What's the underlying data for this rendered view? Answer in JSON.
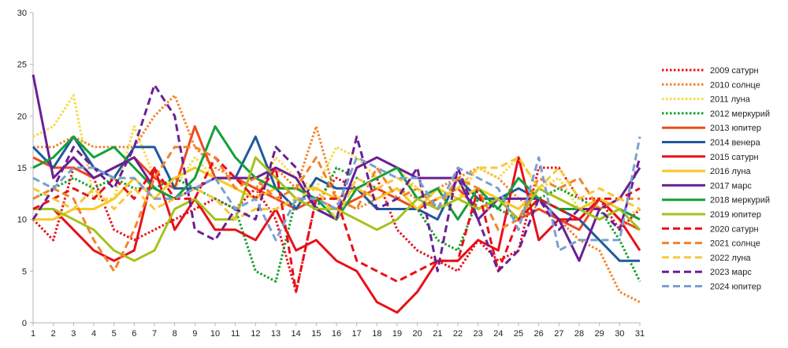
{
  "chart_data": {
    "type": "line",
    "title": "",
    "xlabel": "",
    "ylabel": "",
    "ylim": [
      0,
      30
    ],
    "yticks": [
      0,
      5,
      10,
      15,
      20,
      25,
      30
    ],
    "x": [
      1,
      2,
      3,
      4,
      5,
      6,
      7,
      8,
      9,
      10,
      11,
      12,
      13,
      14,
      15,
      16,
      17,
      18,
      19,
      20,
      21,
      22,
      23,
      24,
      25,
      26,
      27,
      28,
      29,
      30,
      31
    ],
    "grid": false,
    "legend": "right",
    "series": [
      {
        "name": "2009 сатурн",
        "color": "#e8101a",
        "dash": "dot",
        "values": [
          10,
          8,
          15,
          14,
          9,
          8,
          9,
          10,
          11,
          12,
          11,
          13,
          10,
          3,
          12,
          14,
          13,
          14,
          9,
          7,
          6,
          5,
          8,
          6,
          7,
          15,
          15,
          12,
          12,
          9,
          11
        ]
      },
      {
        "name": "2010 солнце",
        "color": "#f2832b",
        "dash": "dot",
        "values": [
          17,
          17,
          18,
          17,
          17,
          17,
          20,
          22,
          17,
          15,
          14,
          13,
          15,
          13,
          19,
          12,
          11,
          12,
          13,
          12,
          13,
          14,
          15,
          14,
          12,
          11,
          10,
          8,
          7,
          3,
          2
        ]
      },
      {
        "name": "2011 луна",
        "color": "#f8d83c",
        "dash": "dot",
        "values": [
          18,
          19,
          22,
          12,
          12,
          19,
          14,
          13,
          16,
          14,
          13,
          12,
          16,
          14,
          13,
          17,
          16,
          14,
          15,
          13,
          11,
          12,
          15,
          14,
          16,
          13,
          14,
          11,
          12,
          10,
          11
        ]
      },
      {
        "name": "2012 меркурий",
        "color": "#13a02a",
        "dash": "dot",
        "values": [
          12,
          13,
          14,
          13,
          14,
          13,
          13,
          14,
          13,
          12,
          11,
          5,
          4,
          12,
          11,
          15,
          14,
          13,
          12,
          11,
          8,
          7,
          12,
          11,
          10,
          12,
          13,
          12,
          11,
          8,
          4
        ]
      },
      {
        "name": "2013 юпитер",
        "color": "#ef4a20",
        "dash": "solid",
        "values": [
          16,
          15,
          15,
          14,
          15,
          16,
          14,
          13,
          19,
          14,
          14,
          13,
          12,
          11,
          12,
          11,
          12,
          13,
          12,
          11,
          12,
          13,
          11,
          12,
          10,
          11,
          10,
          9,
          12,
          10,
          9
        ]
      },
      {
        "name": "2014 венера",
        "color": "#1f5a9c",
        "dash": "solid",
        "values": [
          17,
          15,
          18,
          15,
          14,
          17,
          17,
          13,
          13,
          14,
          14,
          18,
          13,
          11,
          14,
          13,
          13,
          11,
          11,
          11,
          10,
          14,
          12,
          12,
          13,
          12,
          11,
          10,
          8,
          6,
          6
        ]
      },
      {
        "name": "2015 сатурн",
        "color": "#e8101a",
        "dash": "solid",
        "values": [
          11,
          11,
          9,
          7,
          6,
          7,
          15,
          9,
          12,
          9,
          9,
          8,
          11,
          7,
          8,
          6,
          5,
          2,
          1,
          3,
          6,
          6,
          8,
          7,
          16,
          8,
          10,
          10,
          12,
          10,
          7
        ]
      },
      {
        "name": "2016 луна",
        "color": "#f9c823",
        "dash": "solid",
        "values": [
          10,
          10,
          11,
          11,
          12,
          14,
          12,
          14,
          15,
          14,
          13,
          12,
          13,
          13,
          13,
          12,
          13,
          12,
          13,
          11,
          13,
          12,
          13,
          12,
          11,
          13,
          12,
          11,
          12,
          11,
          10
        ]
      },
      {
        "name": "2017 марс",
        "color": "#6b1f94",
        "dash": "solid",
        "values": [
          24,
          14,
          16,
          14,
          15,
          16,
          13,
          12,
          13,
          14,
          14,
          14,
          15,
          14,
          11,
          10,
          15,
          16,
          15,
          14,
          14,
          14,
          10,
          12,
          12,
          12,
          10,
          6,
          11,
          12,
          15
        ]
      },
      {
        "name": "2018 меркурий",
        "color": "#14a03a",
        "dash": "solid",
        "values": [
          15,
          16,
          18,
          16,
          17,
          15,
          13,
          12,
          14,
          19,
          16,
          14,
          13,
          13,
          12,
          10,
          13,
          14,
          15,
          12,
          13,
          10,
          13,
          11,
          14,
          12,
          11,
          11,
          10,
          11,
          10
        ]
      },
      {
        "name": "2019 юпитер",
        "color": "#a5c31b",
        "dash": "solid",
        "values": [
          11,
          11,
          10,
          9,
          7,
          6,
          7,
          11,
          12,
          10,
          10,
          16,
          14,
          12,
          11,
          11,
          10,
          9,
          10,
          12,
          11,
          12,
          11,
          12,
          10,
          13,
          12,
          11,
          10,
          11,
          9
        ]
      },
      {
        "name": "2020 сатурн",
        "color": "#e8101a",
        "dash": "dash",
        "values": [
          11,
          12,
          13,
          12,
          14,
          12,
          15,
          12,
          12,
          16,
          14,
          12,
          15,
          3,
          12,
          12,
          6,
          5,
          4,
          5,
          6,
          6,
          13,
          5,
          10,
          12,
          11,
          10,
          12,
          12,
          13
        ]
      },
      {
        "name": "2021 солнце",
        "color": "#f2832b",
        "dash": "dash",
        "values": [
          12,
          13,
          12,
          8,
          5,
          9,
          14,
          17,
          17,
          16,
          13,
          14,
          12,
          13,
          16,
          12,
          11,
          15,
          12,
          13,
          11,
          14,
          13,
          9,
          10,
          14,
          13,
          14,
          11,
          12,
          12
        ]
      },
      {
        "name": "2022 луна",
        "color": "#f8c83a",
        "dash": "dash",
        "values": [
          13,
          12,
          11,
          13,
          11,
          13,
          11,
          12,
          13,
          12,
          10,
          11,
          11,
          12,
          13,
          10,
          14,
          13,
          14,
          13,
          12,
          13,
          15,
          15,
          16,
          13,
          15,
          12,
          13,
          12,
          11
        ]
      },
      {
        "name": "2023 марс",
        "color": "#6b1f94",
        "dash": "dash",
        "values": [
          10,
          13,
          17,
          15,
          13,
          17,
          23,
          20,
          9,
          8,
          11,
          10,
          17,
          15,
          11,
          10,
          18,
          11,
          12,
          15,
          5,
          15,
          10,
          5,
          7,
          12,
          9,
          11,
          11,
          9,
          16
        ]
      },
      {
        "name": "2024 юпитер",
        "color": "#7aa0d0",
        "dash": "dash",
        "values": [
          14,
          13,
          15,
          15,
          14,
          14,
          12,
          12,
          13,
          14,
          11,
          12,
          8,
          12,
          12,
          11,
          16,
          15,
          14,
          14,
          11,
          15,
          14,
          13,
          9,
          16,
          7,
          8,
          8,
          8,
          18
        ]
      }
    ]
  }
}
